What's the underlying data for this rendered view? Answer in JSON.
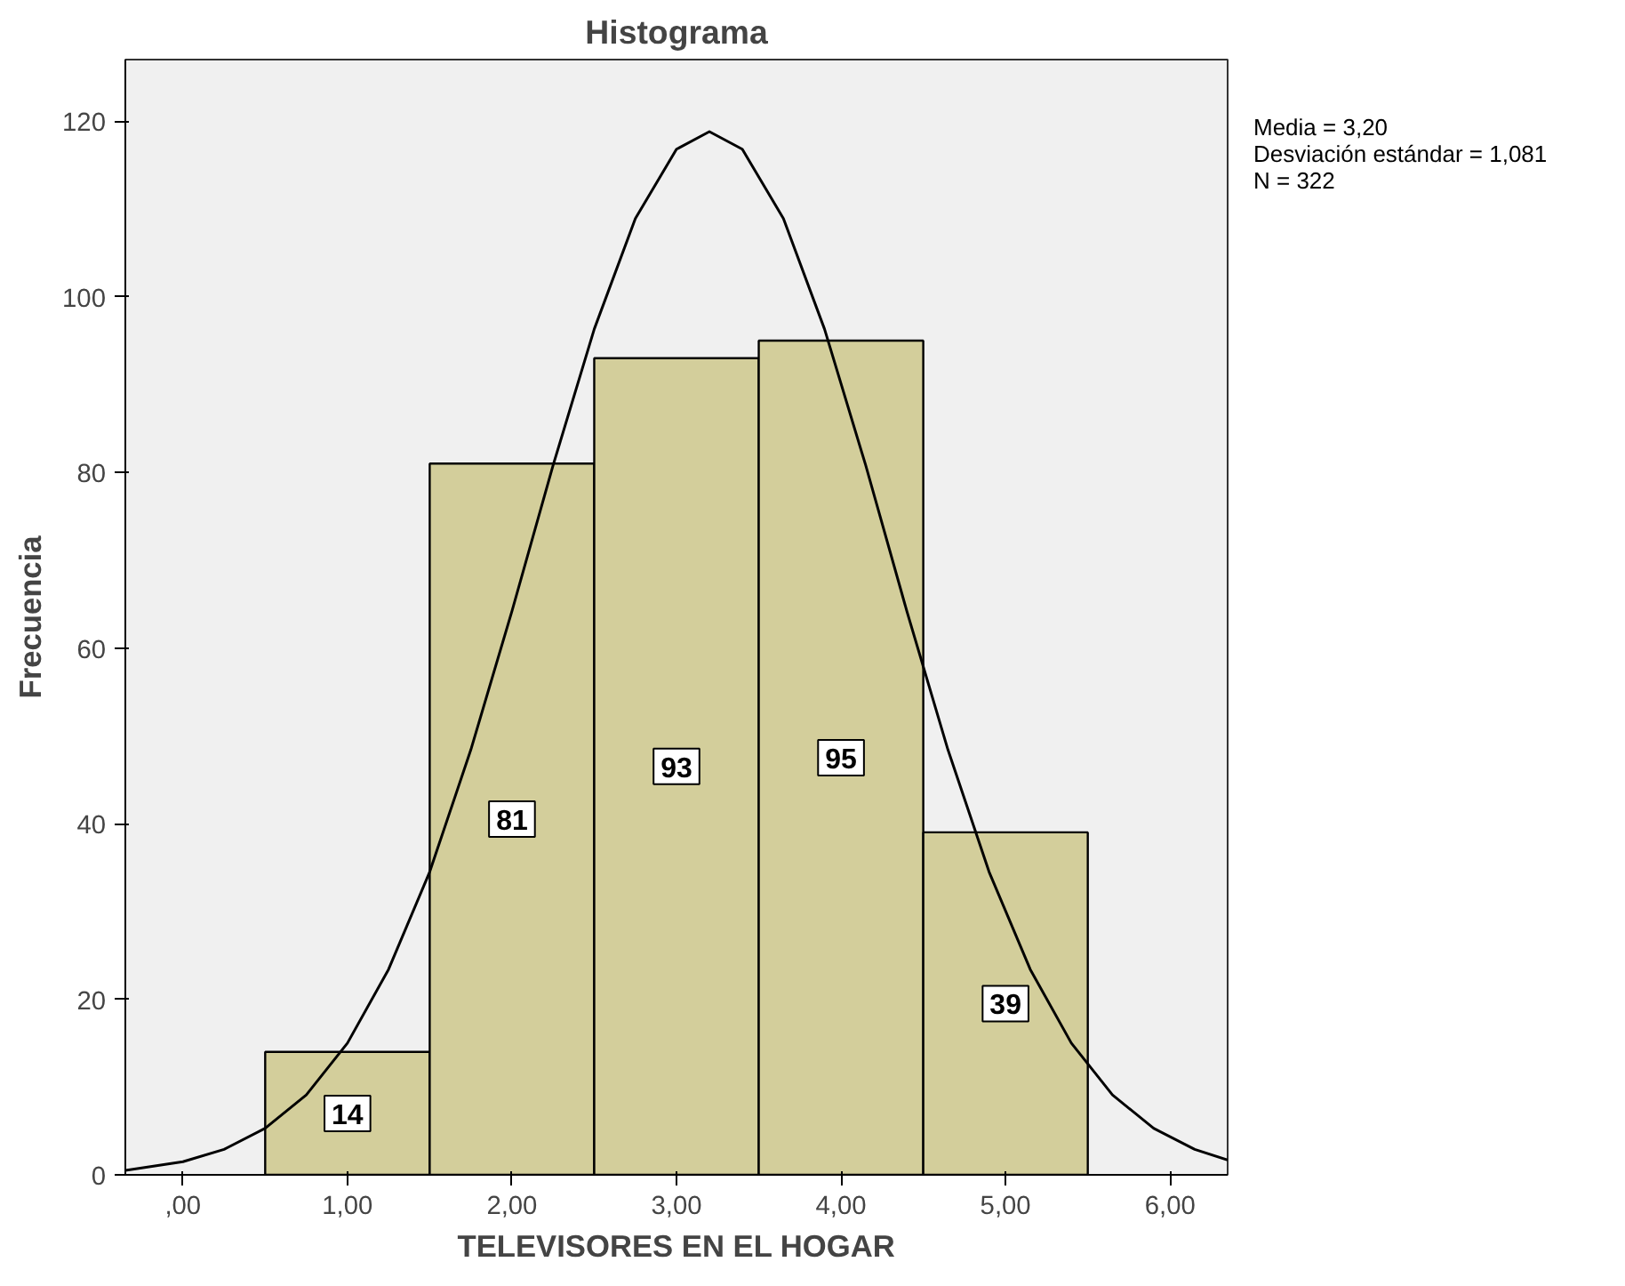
{
  "chart_data": {
    "type": "histogram",
    "title": "Histograma",
    "xlabel": "TELEVISORES EN EL HOGAR",
    "ylabel": "Frecuencia",
    "bins": [
      0.5,
      1.5,
      2.5,
      3.5,
      4.5,
      5.5
    ],
    "series": [
      {
        "color": "#d3ce9b",
        "values": [
          14,
          81,
          93,
          95,
          39
        ],
        "value_labels": [
          "14",
          "81",
          "93",
          "95",
          "39"
        ]
      },
      {
        "type": "line",
        "color": "#000000",
        "x": [
          -0.35,
          0,
          0.25,
          0.5,
          0.75,
          1.0,
          1.25,
          1.5,
          1.75,
          2.0,
          2.25,
          2.5,
          2.75,
          3.0,
          3.2,
          3.4,
          3.65,
          3.9,
          4.15,
          4.4,
          4.65,
          4.9,
          5.15,
          5.4,
          5.65,
          5.9,
          6.15,
          6.35
        ],
        "values": [
          0.5,
          1.5,
          2.9,
          5.3,
          9.1,
          15.0,
          23.4,
          34.5,
          48.4,
          64.2,
          80.8,
          96.3,
          108.9,
          116.8,
          118.8,
          116.8,
          108.9,
          96.3,
          80.8,
          64.2,
          48.4,
          34.5,
          23.4,
          15.0,
          9.1,
          5.3,
          2.9,
          1.7
        ]
      }
    ],
    "marker": "none",
    "line_style": "solid",
    "grid": false,
    "xlim": [
      -0.35,
      6.35
    ],
    "ylim": [
      0,
      127
    ],
    "xticks": [
      {
        "value": 0,
        "label": ",00"
      },
      {
        "value": 1,
        "label": "1,00"
      },
      {
        "value": 2,
        "label": "2,00"
      },
      {
        "value": 3,
        "label": "3,00"
      },
      {
        "value": 4,
        "label": "4,00"
      },
      {
        "value": 5,
        "label": "5,00"
      },
      {
        "value": 6,
        "label": "6,00"
      }
    ],
    "yticks": [
      0,
      20,
      40,
      60,
      80,
      100,
      120
    ],
    "annotations": [
      "Media = 3,20",
      "Desviación estándar = 1,081",
      "N = 322"
    ]
  }
}
